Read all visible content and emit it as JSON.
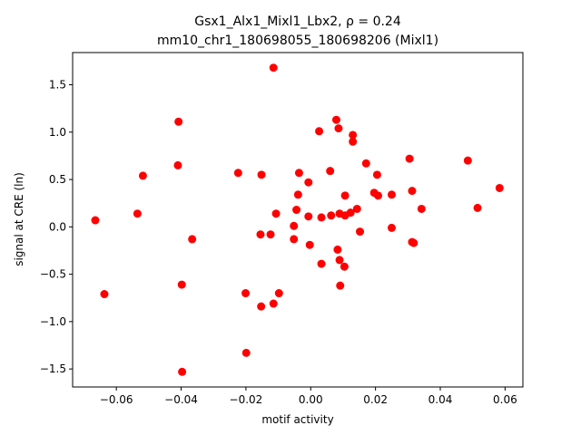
{
  "chart_data": {
    "type": "scatter",
    "title_line1": "Gsx1_Alx1_Mixl1_Lbx2, ρ = 0.24",
    "title_line2": "mm10_chr1_180698055_180698206 (Mixl1)",
    "xlabel": "motif activity",
    "ylabel": "signal at CRE (ln)",
    "xlim": [
      -0.0735,
      0.0655
    ],
    "ylim": [
      -1.69,
      1.84
    ],
    "xticks": [
      -0.06,
      -0.04,
      -0.02,
      0.0,
      0.02,
      0.04,
      0.06
    ],
    "xtick_labels": [
      "−0.06",
      "−0.04",
      "−0.02",
      "0.00",
      "0.02",
      "0.04",
      "0.06"
    ],
    "yticks": [
      -1.5,
      -1.0,
      -0.5,
      0.0,
      0.5,
      1.0,
      1.5
    ],
    "ytick_labels": [
      "−1.5",
      "−1.0",
      "−0.5",
      "0.0",
      "0.5",
      "1.0",
      "1.5"
    ],
    "marker_color": "#ff0000",
    "grid": false,
    "points": [
      {
        "x": -0.0665,
        "y": 0.07
      },
      {
        "x": -0.0637,
        "y": -0.71
      },
      {
        "x": -0.0535,
        "y": 0.14
      },
      {
        "x": -0.0518,
        "y": 0.54
      },
      {
        "x": -0.0408,
        "y": 1.11
      },
      {
        "x": -0.041,
        "y": 0.65
      },
      {
        "x": -0.0398,
        "y": -0.61
      },
      {
        "x": -0.0366,
        "y": -0.13
      },
      {
        "x": -0.0397,
        "y": -1.53
      },
      {
        "x": -0.0224,
        "y": 0.57
      },
      {
        "x": -0.0201,
        "y": -0.7
      },
      {
        "x": -0.0199,
        "y": -1.33
      },
      {
        "x": -0.0152,
        "y": 0.55
      },
      {
        "x": -0.0155,
        "y": -0.08
      },
      {
        "x": -0.0153,
        "y": -0.84
      },
      {
        "x": -0.0124,
        "y": -0.08
      },
      {
        "x": -0.0115,
        "y": -0.81
      },
      {
        "x": -0.0115,
        "y": 1.68
      },
      {
        "x": -0.0107,
        "y": 0.14
      },
      {
        "x": -0.0098,
        "y": -0.7
      },
      {
        "x": -0.0052,
        "y": 0.01
      },
      {
        "x": -0.0052,
        "y": -0.13
      },
      {
        "x": -0.0044,
        "y": 0.18
      },
      {
        "x": -0.0039,
        "y": 0.34
      },
      {
        "x": -0.0036,
        "y": 0.57
      },
      {
        "x": -0.0007,
        "y": 0.47
      },
      {
        "x": -0.0007,
        "y": 0.11
      },
      {
        "x": -0.0003,
        "y": -0.19
      },
      {
        "x": 0.0026,
        "y": 1.01
      },
      {
        "x": 0.0033,
        "y": 0.1
      },
      {
        "x": 0.0033,
        "y": -0.39
      },
      {
        "x": 0.006,
        "y": 0.59
      },
      {
        "x": 0.0063,
        "y": 0.12
      },
      {
        "x": 0.0079,
        "y": 1.13
      },
      {
        "x": 0.0086,
        "y": 1.04
      },
      {
        "x": 0.0083,
        "y": -0.24
      },
      {
        "x": 0.0089,
        "y": 0.14
      },
      {
        "x": 0.0089,
        "y": -0.35
      },
      {
        "x": 0.0091,
        "y": -0.62
      },
      {
        "x": 0.0106,
        "y": 0.33
      },
      {
        "x": 0.0106,
        "y": 0.12
      },
      {
        "x": 0.0104,
        "y": -0.42
      },
      {
        "x": 0.0123,
        "y": 0.15
      },
      {
        "x": 0.013,
        "y": 0.97
      },
      {
        "x": 0.013,
        "y": 0.9
      },
      {
        "x": 0.0143,
        "y": 0.19
      },
      {
        "x": 0.0152,
        "y": -0.05
      },
      {
        "x": 0.0171,
        "y": 0.67
      },
      {
        "x": 0.0196,
        "y": 0.36
      },
      {
        "x": 0.0205,
        "y": 0.55
      },
      {
        "x": 0.0208,
        "y": 0.33
      },
      {
        "x": 0.025,
        "y": 0.34
      },
      {
        "x": 0.025,
        "y": -0.01
      },
      {
        "x": 0.0305,
        "y": 0.72
      },
      {
        "x": 0.0313,
        "y": 0.38
      },
      {
        "x": 0.0313,
        "y": -0.16
      },
      {
        "x": 0.0318,
        "y": -0.17
      },
      {
        "x": 0.0342,
        "y": 0.19
      },
      {
        "x": 0.0485,
        "y": 0.7
      },
      {
        "x": 0.0515,
        "y": 0.2
      },
      {
        "x": 0.0583,
        "y": 0.41
      }
    ]
  }
}
